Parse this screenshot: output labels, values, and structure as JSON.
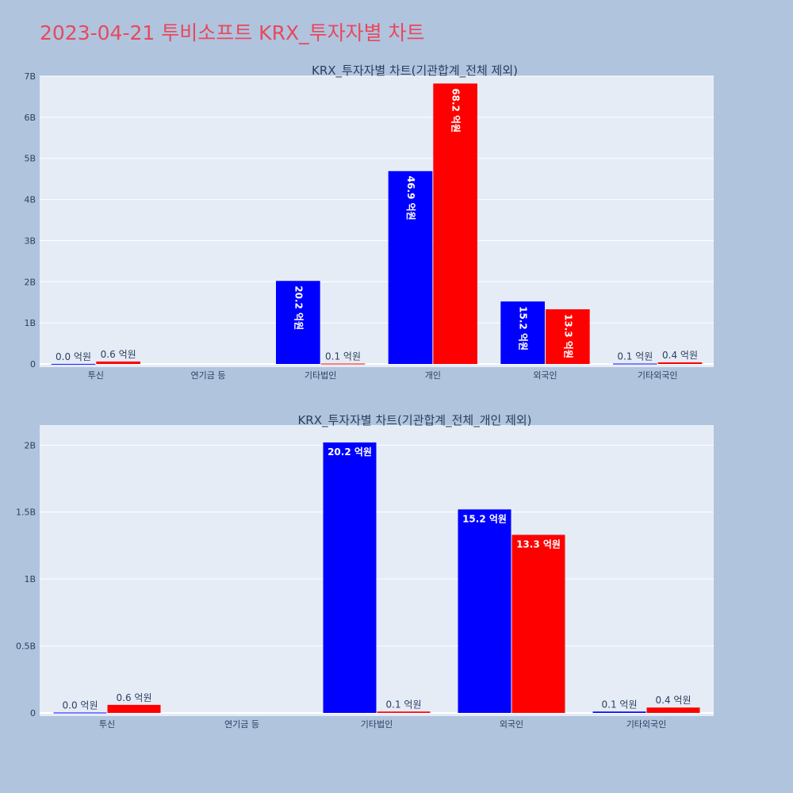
{
  "page": {
    "title": "2023-04-21 투비소프트 KRX_투자자별 차트"
  },
  "colors": {
    "background": "#b0c4de",
    "plot_bg": "#e5ecf6",
    "sell": "#0000ff",
    "buy": "#ff0000",
    "title": "#e8485e"
  },
  "chart_data": [
    {
      "type": "bar",
      "title": "KRX_투자자별 차트(기관합계_전체 제외)",
      "categories": [
        "투신",
        "연기금 등",
        "기타법인",
        "개인",
        "외국인",
        "기타외국인"
      ],
      "series": [
        {
          "color": "#0000ff",
          "values": [
            0.003,
            null,
            2.02,
            4.69,
            1.52,
            0.01
          ],
          "labels": [
            "0.0 억원",
            "",
            "20.2 억원",
            "46.9 억원",
            "15.2 억원",
            "0.1 억원"
          ]
        },
        {
          "color": "#ff0000",
          "values": [
            0.06,
            null,
            0.01,
            6.82,
            1.33,
            0.04
          ],
          "labels": [
            "0.6 억원",
            "",
            "0.1 억원",
            "68.2 억원",
            "13.3 억원",
            "0.4 억원"
          ]
        }
      ],
      "ylim": [
        0,
        7.0
      ],
      "yticks": [
        0,
        1,
        2,
        3,
        4,
        5,
        6,
        7
      ],
      "ytick_labels": [
        "0",
        "1B",
        "2B",
        "3B",
        "4B",
        "5B",
        "6B",
        "7B"
      ],
      "inside_label_rotation": 90,
      "grid": true
    },
    {
      "type": "bar",
      "title": "KRX_투자자별 차트(기관합계_전체_개인 제외)",
      "categories": [
        "투신",
        "연기금 등",
        "기타법인",
        "외국인",
        "기타외국인"
      ],
      "series": [
        {
          "color": "#0000ff",
          "values": [
            0.003,
            null,
            2.02,
            1.52,
            0.01
          ],
          "labels": [
            "0.0 억원",
            "",
            "20.2 억원",
            "15.2 억원",
            "0.1 억원"
          ]
        },
        {
          "color": "#ff0000",
          "values": [
            0.06,
            null,
            0.01,
            1.33,
            0.04
          ],
          "labels": [
            "0.6 억원",
            "",
            "0.1 억원",
            "13.3 억원",
            "0.4 억원"
          ]
        }
      ],
      "ylim": [
        0,
        2.15
      ],
      "yticks": [
        0,
        0.5,
        1,
        1.5,
        2
      ],
      "ytick_labels": [
        "0",
        "0.5B",
        "1B",
        "1.5B",
        "2B"
      ],
      "inside_label_rotation": 0,
      "grid": true
    }
  ]
}
